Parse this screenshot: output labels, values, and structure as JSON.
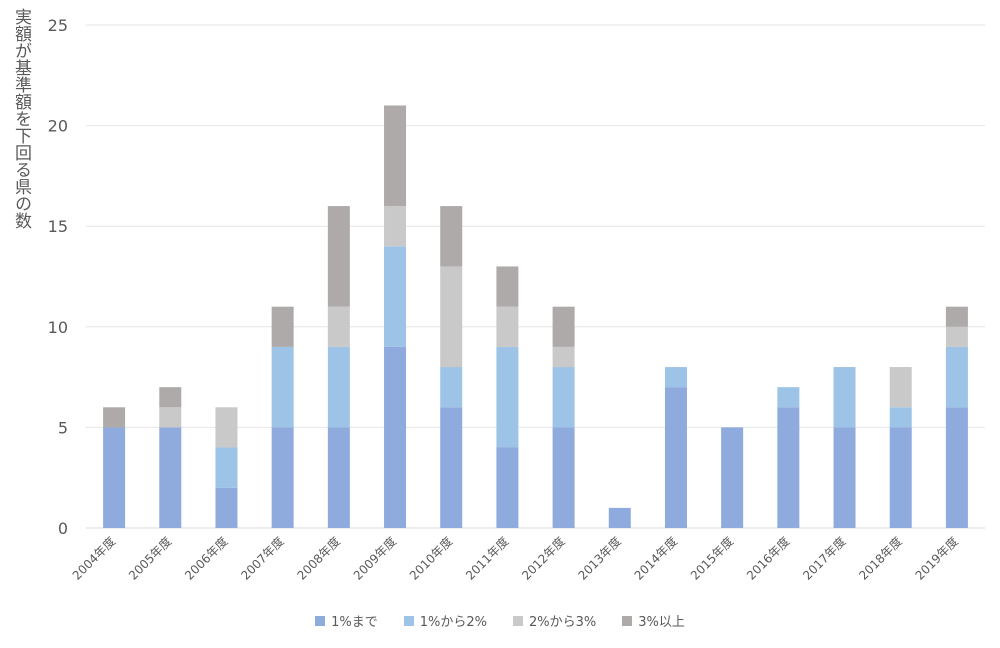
{
  "chart_data": {
    "type": "bar",
    "stacked": true,
    "ylabel": "実額が基準額を下回る県の数",
    "ylim": [
      0,
      25
    ],
    "yticks": [
      0,
      5,
      10,
      15,
      20,
      25
    ],
    "grid": true,
    "legend_position": "bottom",
    "categories": [
      "2004年度",
      "2005年度",
      "2006年度",
      "2007年度",
      "2008年度",
      "2009年度",
      "2010年度",
      "2011年度",
      "2012年度",
      "2013年度",
      "2014年度",
      "2015年度",
      "2016年度",
      "2017年度",
      "2018年度",
      "2019年度"
    ],
    "series": [
      {
        "name": "1%まで",
        "color": "#8faadc",
        "values": [
          5,
          5,
          2,
          5,
          5,
          9,
          6,
          4,
          5,
          1,
          7,
          5,
          6,
          5,
          5,
          6
        ]
      },
      {
        "name": "1%から2%",
        "color": "#9dc3e6",
        "values": [
          0,
          0,
          2,
          4,
          4,
          5,
          2,
          5,
          3,
          0,
          1,
          0,
          1,
          3,
          1,
          3
        ]
      },
      {
        "name": "2%から3%",
        "color": "#c9c9c9",
        "values": [
          0,
          1,
          2,
          0,
          2,
          2,
          5,
          2,
          1,
          0,
          0,
          0,
          0,
          0,
          2,
          1
        ]
      },
      {
        "name": "3%以上",
        "color": "#aeaaaa",
        "values": [
          1,
          1,
          0,
          2,
          5,
          5,
          3,
          2,
          2,
          0,
          0,
          0,
          0,
          0,
          0,
          1
        ]
      }
    ]
  }
}
